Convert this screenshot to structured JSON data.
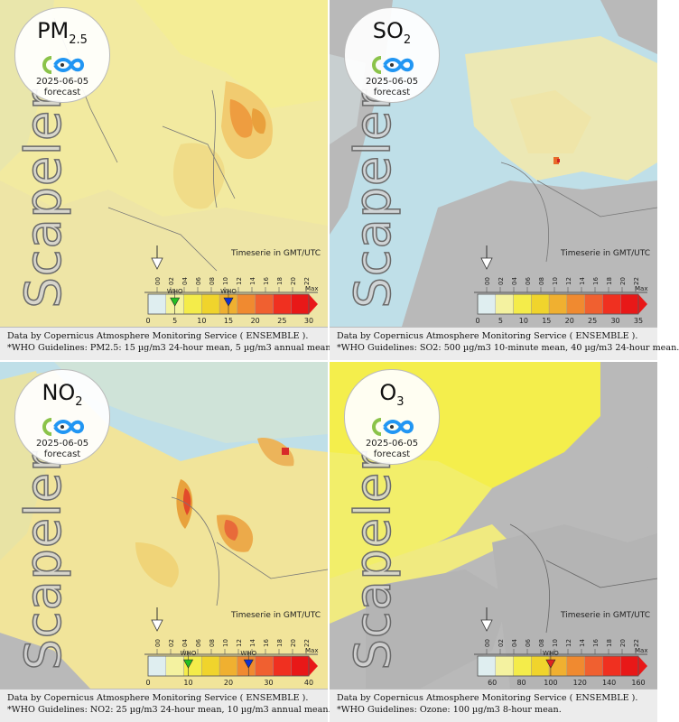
{
  "brand_watermark": "Scapeler",
  "timeseries_label": "Timeserie in GMT/UTC",
  "time_ticks": [
    "00",
    "02",
    "04",
    "06",
    "08",
    "10",
    "12",
    "14",
    "16",
    "18",
    "20",
    "22"
  ],
  "who_label": "WHO",
  "max_label": "Max",
  "panels": [
    {
      "pollutant": "PM",
      "pollutant_sub": "2.5",
      "date": "2025-06-05",
      "forecast": "forecast",
      "scale_ticks": [
        "0",
        "5",
        "10",
        "15",
        "20",
        "25",
        "30"
      ],
      "scale_min": 0,
      "scale_max": 30,
      "who_markers": [
        {
          "value": 5,
          "color": "#22c022"
        },
        {
          "value": 15,
          "color": "#1030d0"
        }
      ],
      "footer_line1": "Data by Copernicus Atmosphere Monitoring Service ( ENSEMBLE ).",
      "footer_line2": "*WHO Guidelines: PM2.5: 15 µg/m3 24-hour mean, 5 µg/m3 annual mean."
    },
    {
      "pollutant": "SO",
      "pollutant_sub": "2",
      "date": "2025-06-05",
      "forecast": "forecast",
      "scale_ticks": [
        "0",
        "5",
        "10",
        "15",
        "20",
        "25",
        "30",
        "35"
      ],
      "scale_min": 0,
      "scale_max": 35,
      "who_markers": [],
      "footer_line1": "Data by Copernicus Atmosphere Monitoring Service ( ENSEMBLE ).",
      "footer_line2": "*WHO Guidelines: SO2: 500 µg/m3 10-minute mean, 40 µg/m3 24-hour mean."
    },
    {
      "pollutant": "NO",
      "pollutant_sub": "2",
      "date": "2025-06-05",
      "forecast": "forecast",
      "scale_ticks": [
        "0",
        "10",
        "20",
        "30",
        "40"
      ],
      "scale_min": 0,
      "scale_max": 40,
      "who_markers": [
        {
          "value": 10,
          "color": "#22c022"
        },
        {
          "value": 25,
          "color": "#1030d0"
        }
      ],
      "footer_line1": "Data by Copernicus Atmosphere Monitoring Service ( ENSEMBLE ).",
      "footer_line2": "*WHO Guidelines: NO2: 25 µg/m3 24-hour mean, 10 µg/m3 annual mean."
    },
    {
      "pollutant": "O",
      "pollutant_sub": "3",
      "date": "2025-06-05",
      "forecast": "forecast",
      "scale_ticks": [
        "60",
        "80",
        "100",
        "120",
        "140",
        "160"
      ],
      "scale_min": 50,
      "scale_max": 160,
      "who_markers": [
        {
          "value": 100,
          "color": "#e02020"
        }
      ],
      "footer_line1": "Data by Copernicus Atmosphere Monitoring Service ( ENSEMBLE ).",
      "footer_line2": "*WHO Guidelines: Ozone: 100 µg/m3 8-hour mean."
    }
  ],
  "colors": {
    "sea": "#bfdfe8",
    "land_gray": "#b9b9b9",
    "scale": [
      "#dfeef0",
      "#f4f2a0",
      "#f4ec4a",
      "#f0d42c",
      "#f0b030",
      "#f08a30",
      "#f06030",
      "#f03020",
      "#e81818"
    ]
  }
}
